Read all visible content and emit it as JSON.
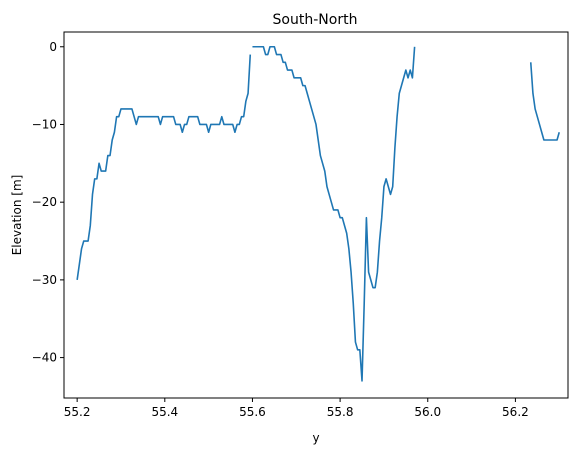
{
  "chart_data": {
    "type": "line",
    "title": "South-North",
    "xlabel": "y",
    "ylabel": "Elevation [m]",
    "xlim": [
      55.17,
      56.32
    ],
    "ylim": [
      -45.2,
      1.9
    ],
    "xticks": [
      55.2,
      55.4,
      55.6,
      55.8,
      56.0,
      56.2
    ],
    "xtick_labels": [
      "55.2",
      "55.4",
      "55.6",
      "55.8",
      "56.0",
      "56.2"
    ],
    "yticks": [
      0,
      -10,
      -20,
      -30,
      -40
    ],
    "ytick_labels": [
      "0",
      "−10",
      "−20",
      "−30",
      "−40"
    ],
    "grid": false,
    "color": "#1f77b4",
    "segments": [
      {
        "x": [
          55.2,
          55.205,
          55.21,
          55.215,
          55.22,
          55.225,
          55.23,
          55.235,
          55.24,
          55.245,
          55.25,
          55.255,
          55.26,
          55.265,
          55.27,
          55.275,
          55.28,
          55.285,
          55.29,
          55.295,
          55.3,
          55.305,
          55.31,
          55.315,
          55.32,
          55.325,
          55.33,
          55.335,
          55.34,
          55.345,
          55.35,
          55.355,
          55.36,
          55.365,
          55.37,
          55.375,
          55.38,
          55.385,
          55.39,
          55.395,
          55.4,
          55.405,
          55.41,
          55.415,
          55.42,
          55.425,
          55.43,
          55.435,
          55.44,
          55.445,
          55.45,
          55.455,
          55.46,
          55.465,
          55.47,
          55.475,
          55.48,
          55.485,
          55.49,
          55.495,
          55.5,
          55.505,
          55.51,
          55.515,
          55.52,
          55.525,
          55.53,
          55.535,
          55.54,
          55.545,
          55.55,
          55.555,
          55.56,
          55.565,
          55.57,
          55.575,
          55.58,
          55.585,
          55.59,
          55.595
        ],
        "y": [
          -30,
          -28,
          -26,
          -25,
          -25,
          -25,
          -23,
          -19,
          -17,
          -17,
          -15,
          -16,
          -16,
          -16,
          -14,
          -14,
          -12,
          -11,
          -9,
          -9,
          -8,
          -8,
          -8,
          -8,
          -8,
          -8,
          -9,
          -10,
          -9,
          -9,
          -9,
          -9,
          -9,
          -9,
          -9,
          -9,
          -9,
          -9,
          -10,
          -9,
          -9,
          -9,
          -9,
          -9,
          -9,
          -10,
          -10,
          -10,
          -11,
          -10,
          -10,
          -9,
          -9,
          -9,
          -9,
          -9,
          -10,
          -10,
          -10,
          -10,
          -11,
          -10,
          -10,
          -10,
          -10,
          -10,
          -9,
          -10,
          -10,
          -10,
          -10,
          -10,
          -11,
          -10,
          -10,
          -9,
          -9,
          -7,
          -6,
          -1
        ]
      },
      {
        "x": [
          55.6,
          55.605,
          55.61,
          55.615,
          55.62,
          55.625,
          55.63,
          55.635,
          55.64,
          55.645,
          55.65,
          55.655,
          55.66,
          55.665,
          55.67,
          55.675,
          55.68,
          55.685,
          55.69,
          55.695,
          55.7,
          55.705,
          55.71,
          55.715,
          55.72,
          55.725,
          55.73,
          55.735,
          55.74,
          55.745,
          55.75,
          55.755,
          55.76,
          55.765,
          55.77,
          55.775,
          55.78,
          55.785,
          55.79,
          55.795,
          55.8,
          55.805,
          55.81,
          55.815,
          55.82,
          55.825,
          55.83,
          55.835,
          55.84,
          55.845,
          55.85,
          55.855,
          55.86,
          55.865,
          55.87,
          55.875,
          55.88,
          55.885,
          55.89,
          55.895,
          55.9,
          55.905,
          55.91,
          55.915,
          55.92,
          55.925,
          55.93,
          55.935,
          55.94,
          55.945,
          55.95,
          55.955,
          55.96,
          55.965,
          55.97,
          55.975,
          55.98,
          55.985,
          55.99
        ],
        "y": [
          0,
          0,
          0,
          0,
          0,
          0,
          -1,
          -1,
          0,
          0,
          0,
          -1,
          -1,
          -1,
          -2,
          -2,
          -3,
          -3,
          -3,
          -4,
          -4,
          -4,
          -4,
          -5,
          -5,
          -6,
          -7,
          -8,
          -9,
          -10,
          -12,
          -14,
          -15,
          -16,
          -18,
          -19,
          -20,
          -21,
          -21,
          -21,
          -22,
          -22,
          -23,
          -24,
          -26,
          -29,
          -33,
          -38,
          -39,
          -39,
          -43,
          -33,
          -22,
          -29,
          -30,
          -31,
          -31,
          -29,
          -25,
          -22,
          -18,
          -17,
          -18,
          -19,
          -18,
          -13,
          -9,
          -6,
          -5,
          -4,
          -3,
          -4,
          -3,
          -4,
          0,
          null,
          null,
          null,
          null
        ]
      },
      {
        "x": [
          56.235,
          56.24,
          56.245,
          56.25,
          56.255,
          56.26,
          56.265,
          56.27,
          56.275,
          56.28,
          56.285,
          56.29,
          56.295,
          56.3
        ],
        "y": [
          -2,
          -6,
          -8,
          -9,
          -10,
          -11,
          -12,
          -12,
          -12,
          -12,
          -12,
          -12,
          -12,
          -11
        ]
      }
    ]
  }
}
